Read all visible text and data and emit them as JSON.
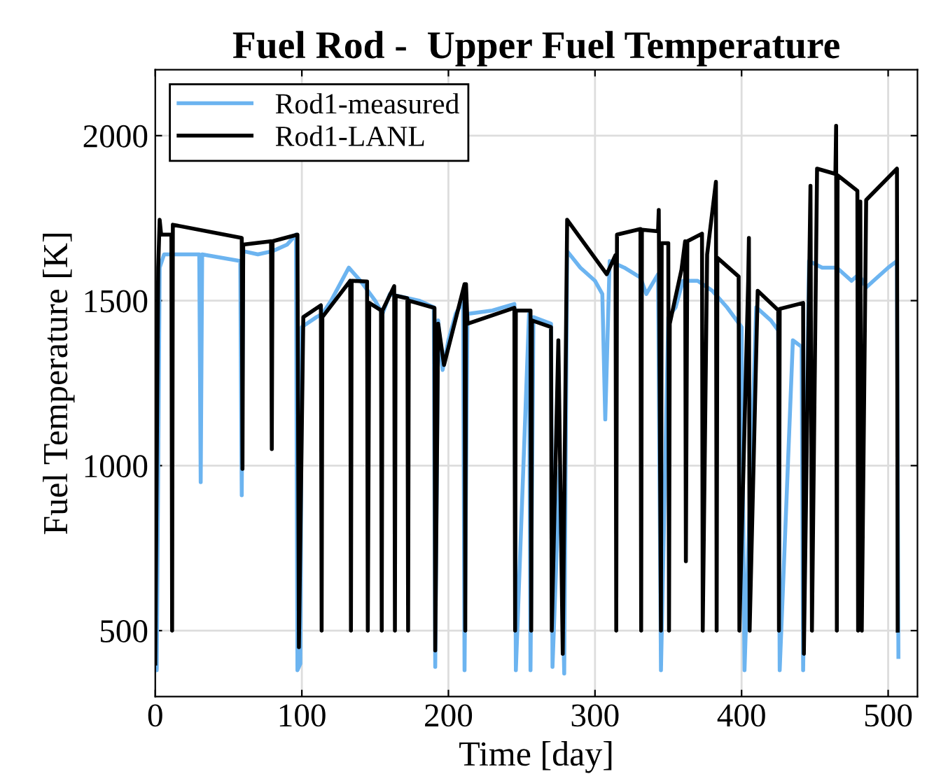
{
  "chart_data": {
    "type": "line",
    "title": "Fuel Rod -  Upper Fuel Temperature",
    "xlabel": "Time [day]",
    "ylabel": "Fuel Temperature [K]",
    "xlim": [
      0,
      520
    ],
    "ylim": [
      300,
      2200
    ],
    "xticks": [
      0,
      100,
      200,
      300,
      400,
      500
    ],
    "yticks": [
      500,
      1000,
      1500,
      2000
    ],
    "grid": true,
    "legend": "top left",
    "series": [
      {
        "name": "Rod1-measured",
        "color": "#6cb4f0",
        "x": [
          0,
          1,
          3,
          6,
          30,
          31,
          32,
          58,
          59,
          60,
          70,
          80,
          90,
          96,
          97,
          99,
          100,
          110,
          114,
          120,
          132,
          140,
          145,
          150,
          155,
          160,
          170,
          180,
          190,
          191,
          193,
          196,
          200,
          205,
          210,
          211,
          213,
          230,
          245,
          246,
          255,
          256,
          258,
          270,
          271,
          276,
          279,
          281,
          290,
          300,
          305,
          307,
          310,
          320,
          331,
          335,
          343,
          345,
          350,
          355,
          360,
          370,
          380,
          390,
          400,
          402,
          410,
          420,
          425,
          426,
          435,
          441,
          442,
          446,
          455,
          465,
          475,
          480,
          485,
          490,
          500,
          506,
          507
        ],
        "values": [
          600,
          380,
          1600,
          1640,
          1640,
          950,
          1640,
          1620,
          910,
          1650,
          1640,
          1650,
          1670,
          1700,
          380,
          400,
          1420,
          1450,
          1460,
          1500,
          1600,
          1560,
          1530,
          1500,
          1460,
          1520,
          1510,
          1500,
          1480,
          390,
          1440,
          1290,
          1380,
          1460,
          1500,
          380,
          1460,
          1470,
          1490,
          380,
          1460,
          380,
          1450,
          1430,
          390,
          1000,
          370,
          1650,
          1600,
          1560,
          1520,
          1140,
          1620,
          1600,
          1570,
          1520,
          1580,
          380,
          1450,
          1480,
          1560,
          1560,
          1530,
          1480,
          1420,
          380,
          1480,
          1440,
          1410,
          380,
          1380,
          1360,
          380,
          1620,
          1600,
          1600,
          1560,
          1580,
          1540,
          1560,
          1600,
          1620,
          420
        ]
      },
      {
        "name": "Rod1-LANL",
        "color": "#000000",
        "x": [
          0,
          2,
          3,
          4,
          5,
          11,
          11.5,
          12,
          59,
          59.5,
          60,
          79,
          79.5,
          80,
          97,
          98,
          101,
          113,
          113.5,
          114,
          133,
          133.5,
          134,
          144.5,
          145,
          146,
          154,
          154.5,
          155,
          163,
          163.5,
          164,
          172,
          172.5,
          173,
          190.5,
          191,
          193,
          197,
          211,
          211.5,
          212,
          213,
          245,
          245.5,
          246,
          256,
          256.5,
          257,
          270,
          270.5,
          275,
          278,
          281,
          308,
          314,
          314.5,
          315,
          331,
          331.5,
          332,
          343,
          343.5,
          345,
          345.5,
          350,
          350.5,
          351,
          359,
          361.5,
          362,
          363,
          373,
          373.5,
          376.5,
          382.5,
          383,
          383.5,
          398,
          398.5,
          404.5,
          405,
          405.5,
          411,
          425,
          425.5,
          426,
          442,
          442.5,
          447,
          448,
          451.5,
          464,
          464.5,
          465,
          465.5,
          479,
          479.5,
          481,
          482,
          485,
          506,
          506.5
        ],
        "values": [
          400,
          1600,
          1745,
          1700,
          1700,
          1700,
          500,
          1730,
          1690,
          990,
          1670,
          1680,
          1050,
          1680,
          1700,
          450,
          1450,
          1486,
          500,
          1450,
          1560,
          500,
          1560,
          1558,
          500,
          1493,
          1471,
          500,
          1470,
          1544,
          500,
          1515,
          1507,
          500,
          1500,
          1478,
          440,
          1430,
          1305,
          1550,
          500,
          1550,
          1430,
          1478,
          500,
          1470,
          1470,
          500,
          1440,
          1420,
          500,
          1380,
          430,
          1745,
          1580,
          1638,
          500,
          1700,
          1717,
          500,
          1715,
          1710,
          1775,
          500,
          1674,
          1674,
          500,
          1430,
          1594,
          1680,
          710,
          1680,
          1703,
          500,
          1640,
          1860,
          500,
          1630,
          1573,
          500,
          1558,
          1690,
          500,
          1530,
          1471,
          500,
          1475,
          1493,
          430,
          1848,
          500,
          1900,
          1884,
          2030,
          500,
          1880,
          1833,
          500,
          1800,
          500,
          1805,
          1900,
          500
        ]
      }
    ]
  }
}
